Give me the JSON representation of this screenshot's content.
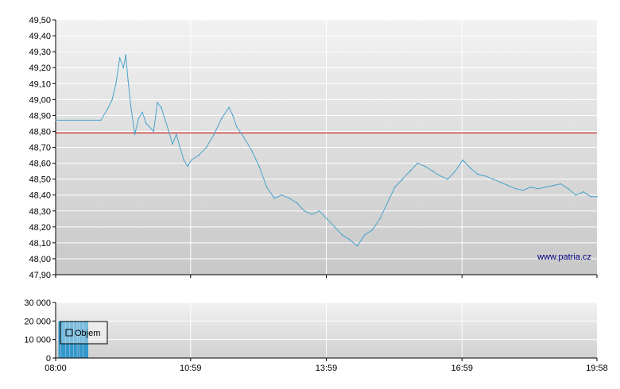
{
  "colors": {
    "price_line": "#4aa3cc",
    "reference_line": "#cc0000",
    "volume_bar": "#3399cc",
    "grid": "#ffffff",
    "plot_bg_top": "#f2f2f2",
    "plot_bg_bottom": "#c8c8c8",
    "axis": "#000000"
  },
  "chart_data": [
    {
      "type": "line",
      "title": "",
      "xlabel": "",
      "ylabel": "",
      "ylim": [
        47.9,
        49.5
      ],
      "xlim": [
        "08:00",
        "19:58"
      ],
      "grid": true,
      "y_ticks": [
        "47,90",
        "48,00",
        "48,10",
        "48,20",
        "48,30",
        "48,40",
        "48,50",
        "48,60",
        "48,70",
        "48,80",
        "48,90",
        "49,00",
        "49,10",
        "49,20",
        "49,30",
        "49,40",
        "49,50"
      ],
      "reference_line": {
        "y": 48.79
      },
      "watermark": "www.patria.cz",
      "series": [
        {
          "x": [
            "08:00",
            "09:00",
            "09:10",
            "09:15",
            "09:20",
            "09:25",
            "09:30",
            "09:33",
            "09:36",
            "09:40",
            "09:45",
            "09:50",
            "09:55",
            "10:00",
            "10:10",
            "10:15",
            "10:20",
            "10:30",
            "10:35",
            "10:40",
            "10:50",
            "10:55",
            "11:00",
            "11:10",
            "11:20",
            "11:30",
            "11:40",
            "11:50",
            "11:55",
            "12:00",
            "12:10",
            "12:20",
            "12:30",
            "12:40",
            "12:50",
            "13:00",
            "13:10",
            "13:20",
            "13:30",
            "13:40",
            "13:50",
            "14:00",
            "14:10",
            "14:20",
            "14:30",
            "14:40",
            "14:50",
            "15:00",
            "15:10",
            "15:20",
            "15:30",
            "15:40",
            "15:50",
            "16:00",
            "16:10",
            "16:20",
            "16:30",
            "16:40",
            "16:50",
            "17:00",
            "17:10",
            "17:20",
            "17:30",
            "17:40",
            "17:50",
            "18:00",
            "18:10",
            "18:20",
            "18:30",
            "18:40",
            "18:50",
            "19:00",
            "19:10",
            "19:20",
            "19:30",
            "19:40",
            "19:50",
            "19:58"
          ],
          "y": [
            48.87,
            48.87,
            48.95,
            49.0,
            49.1,
            49.26,
            49.2,
            49.28,
            49.12,
            48.95,
            48.78,
            48.88,
            48.92,
            48.85,
            48.8,
            48.98,
            48.95,
            48.8,
            48.72,
            48.78,
            48.62,
            48.58,
            48.62,
            48.65,
            48.7,
            48.78,
            48.88,
            48.95,
            48.9,
            48.83,
            48.76,
            48.68,
            48.58,
            48.45,
            48.38,
            48.4,
            48.38,
            48.35,
            48.3,
            48.28,
            48.3,
            48.25,
            48.2,
            48.15,
            48.12,
            48.08,
            48.15,
            48.18,
            48.25,
            48.35,
            48.45,
            48.5,
            48.55,
            48.6,
            48.58,
            48.55,
            48.52,
            48.5,
            48.55,
            48.62,
            48.57,
            48.53,
            48.52,
            48.5,
            48.48,
            48.46,
            48.44,
            48.43,
            48.45,
            48.44,
            48.45,
            48.46,
            48.47,
            48.44,
            48.4,
            48.42,
            48.39,
            48.39
          ]
        }
      ]
    },
    {
      "type": "bar",
      "title": "",
      "xlabel": "",
      "ylabel": "",
      "ylim": [
        0,
        30000
      ],
      "grid": true,
      "y_ticks": [
        "0",
        "10 000",
        "20 000",
        "30 000"
      ],
      "x_ticks": [
        "08:00",
        "10:59",
        "13:59",
        "16:59",
        "19:58"
      ],
      "legend": {
        "position": "top-left",
        "entries": [
          "Objem"
        ]
      },
      "series": [
        {
          "name": "Objem",
          "x": [
            "08:05",
            "08:08",
            "08:10",
            "08:12",
            "08:15",
            "08:17",
            "08:20",
            "08:22",
            "08:25",
            "08:27",
            "08:30",
            "08:33",
            "08:35",
            "08:38",
            "08:40",
            "08:42"
          ],
          "values": [
            20000,
            20000,
            20000,
            20000,
            20000,
            20000,
            20000,
            20000,
            20000,
            20000,
            20000,
            20000,
            20000,
            20000,
            20000,
            20000
          ]
        }
      ]
    }
  ]
}
